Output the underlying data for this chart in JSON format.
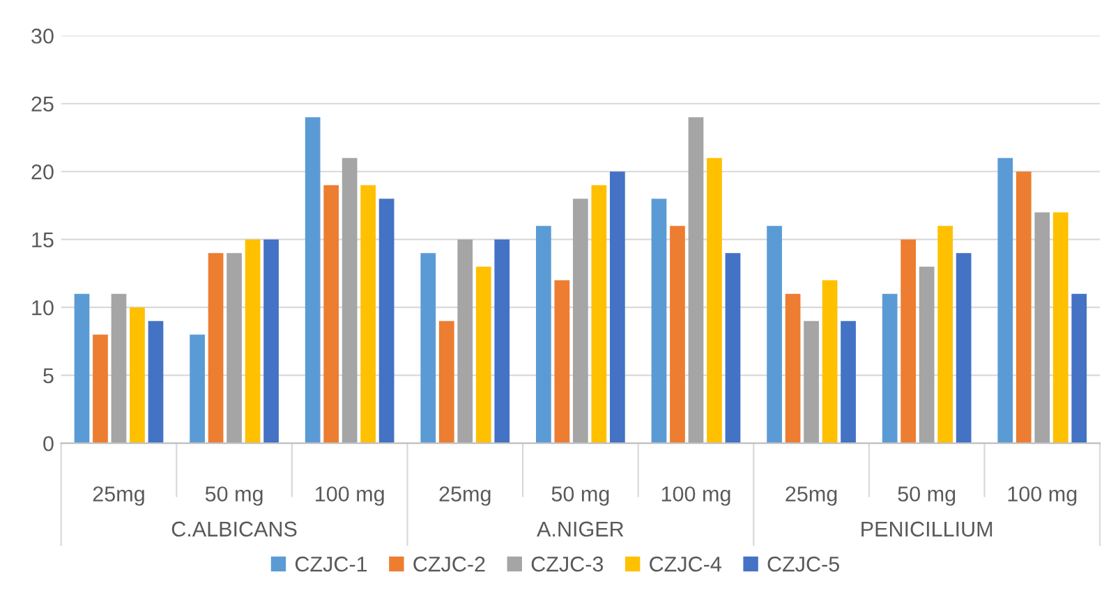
{
  "chart_data": {
    "type": "bar",
    "categories": [
      "25mg",
      "50 mg",
      "100 mg",
      "25mg",
      "50 mg",
      "100 mg",
      "25mg",
      "50 mg",
      "100 mg"
    ],
    "annotations": [
      "C.ALBICANS",
      "A.NIGER",
      "PENICILLIUM"
    ],
    "series": [
      {
        "name": "CZJC-1",
        "color": "#5b9bd5",
        "values": [
          11,
          8,
          24,
          14,
          16,
          18,
          16,
          11,
          21
        ]
      },
      {
        "name": "CZJC-2",
        "color": "#ed7d31",
        "values": [
          8,
          14,
          19,
          9,
          12,
          16,
          11,
          15,
          20
        ]
      },
      {
        "name": "CZJC-3",
        "color": "#a5a5a5",
        "values": [
          11,
          14,
          21,
          15,
          18,
          24,
          9,
          13,
          17
        ]
      },
      {
        "name": "CZJC-4",
        "color": "#ffc000",
        "values": [
          10,
          15,
          19,
          13,
          19,
          21,
          12,
          16,
          17
        ]
      },
      {
        "name": "CZJC-5",
        "color": "#4472c4",
        "values": [
          9,
          15,
          18,
          15,
          20,
          14,
          9,
          14,
          11
        ]
      }
    ],
    "ylim": [
      0,
      30
    ],
    "yticks": [
      0,
      5,
      10,
      15,
      20,
      25,
      30
    ],
    "grid": "y",
    "legend": "bottom"
  }
}
